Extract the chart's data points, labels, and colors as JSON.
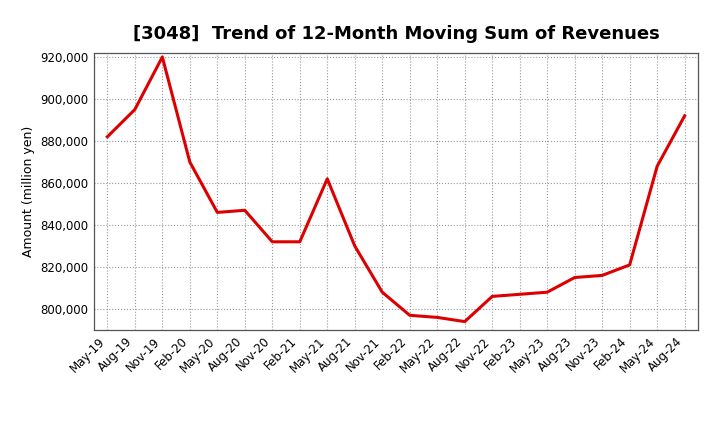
{
  "title": "[3048]  Trend of 12-Month Moving Sum of Revenues",
  "ylabel": "Amount (million yen)",
  "line_color": "#dd0000",
  "background_color": "#ffffff",
  "plot_bg_color": "#ffffff",
  "grid_color": "#999999",
  "x_labels": [
    "May-19",
    "Aug-19",
    "Nov-19",
    "Feb-20",
    "May-20",
    "Aug-20",
    "Nov-20",
    "Feb-21",
    "May-21",
    "Aug-21",
    "Nov-21",
    "Feb-22",
    "May-22",
    "Aug-22",
    "Nov-22",
    "Feb-23",
    "May-23",
    "Aug-23",
    "Nov-23",
    "Feb-24",
    "May-24",
    "Aug-24"
  ],
  "x_values": [
    0,
    1,
    2,
    3,
    4,
    5,
    6,
    7,
    8,
    9,
    10,
    11,
    12,
    13,
    14,
    15,
    16,
    17,
    18,
    19,
    20,
    21
  ],
  "y_values": [
    882000,
    895000,
    920000,
    870000,
    846000,
    847000,
    832000,
    832000,
    862000,
    830000,
    808000,
    797000,
    796000,
    794000,
    806000,
    807000,
    808000,
    815000,
    816000,
    821000,
    868000,
    892000
  ],
  "ylim": [
    790000,
    922000
  ],
  "yticks": [
    800000,
    820000,
    840000,
    860000,
    880000,
    900000,
    920000
  ],
  "line_width": 2.2,
  "title_fontsize": 13,
  "tick_fontsize": 8.5,
  "ylabel_fontsize": 9
}
